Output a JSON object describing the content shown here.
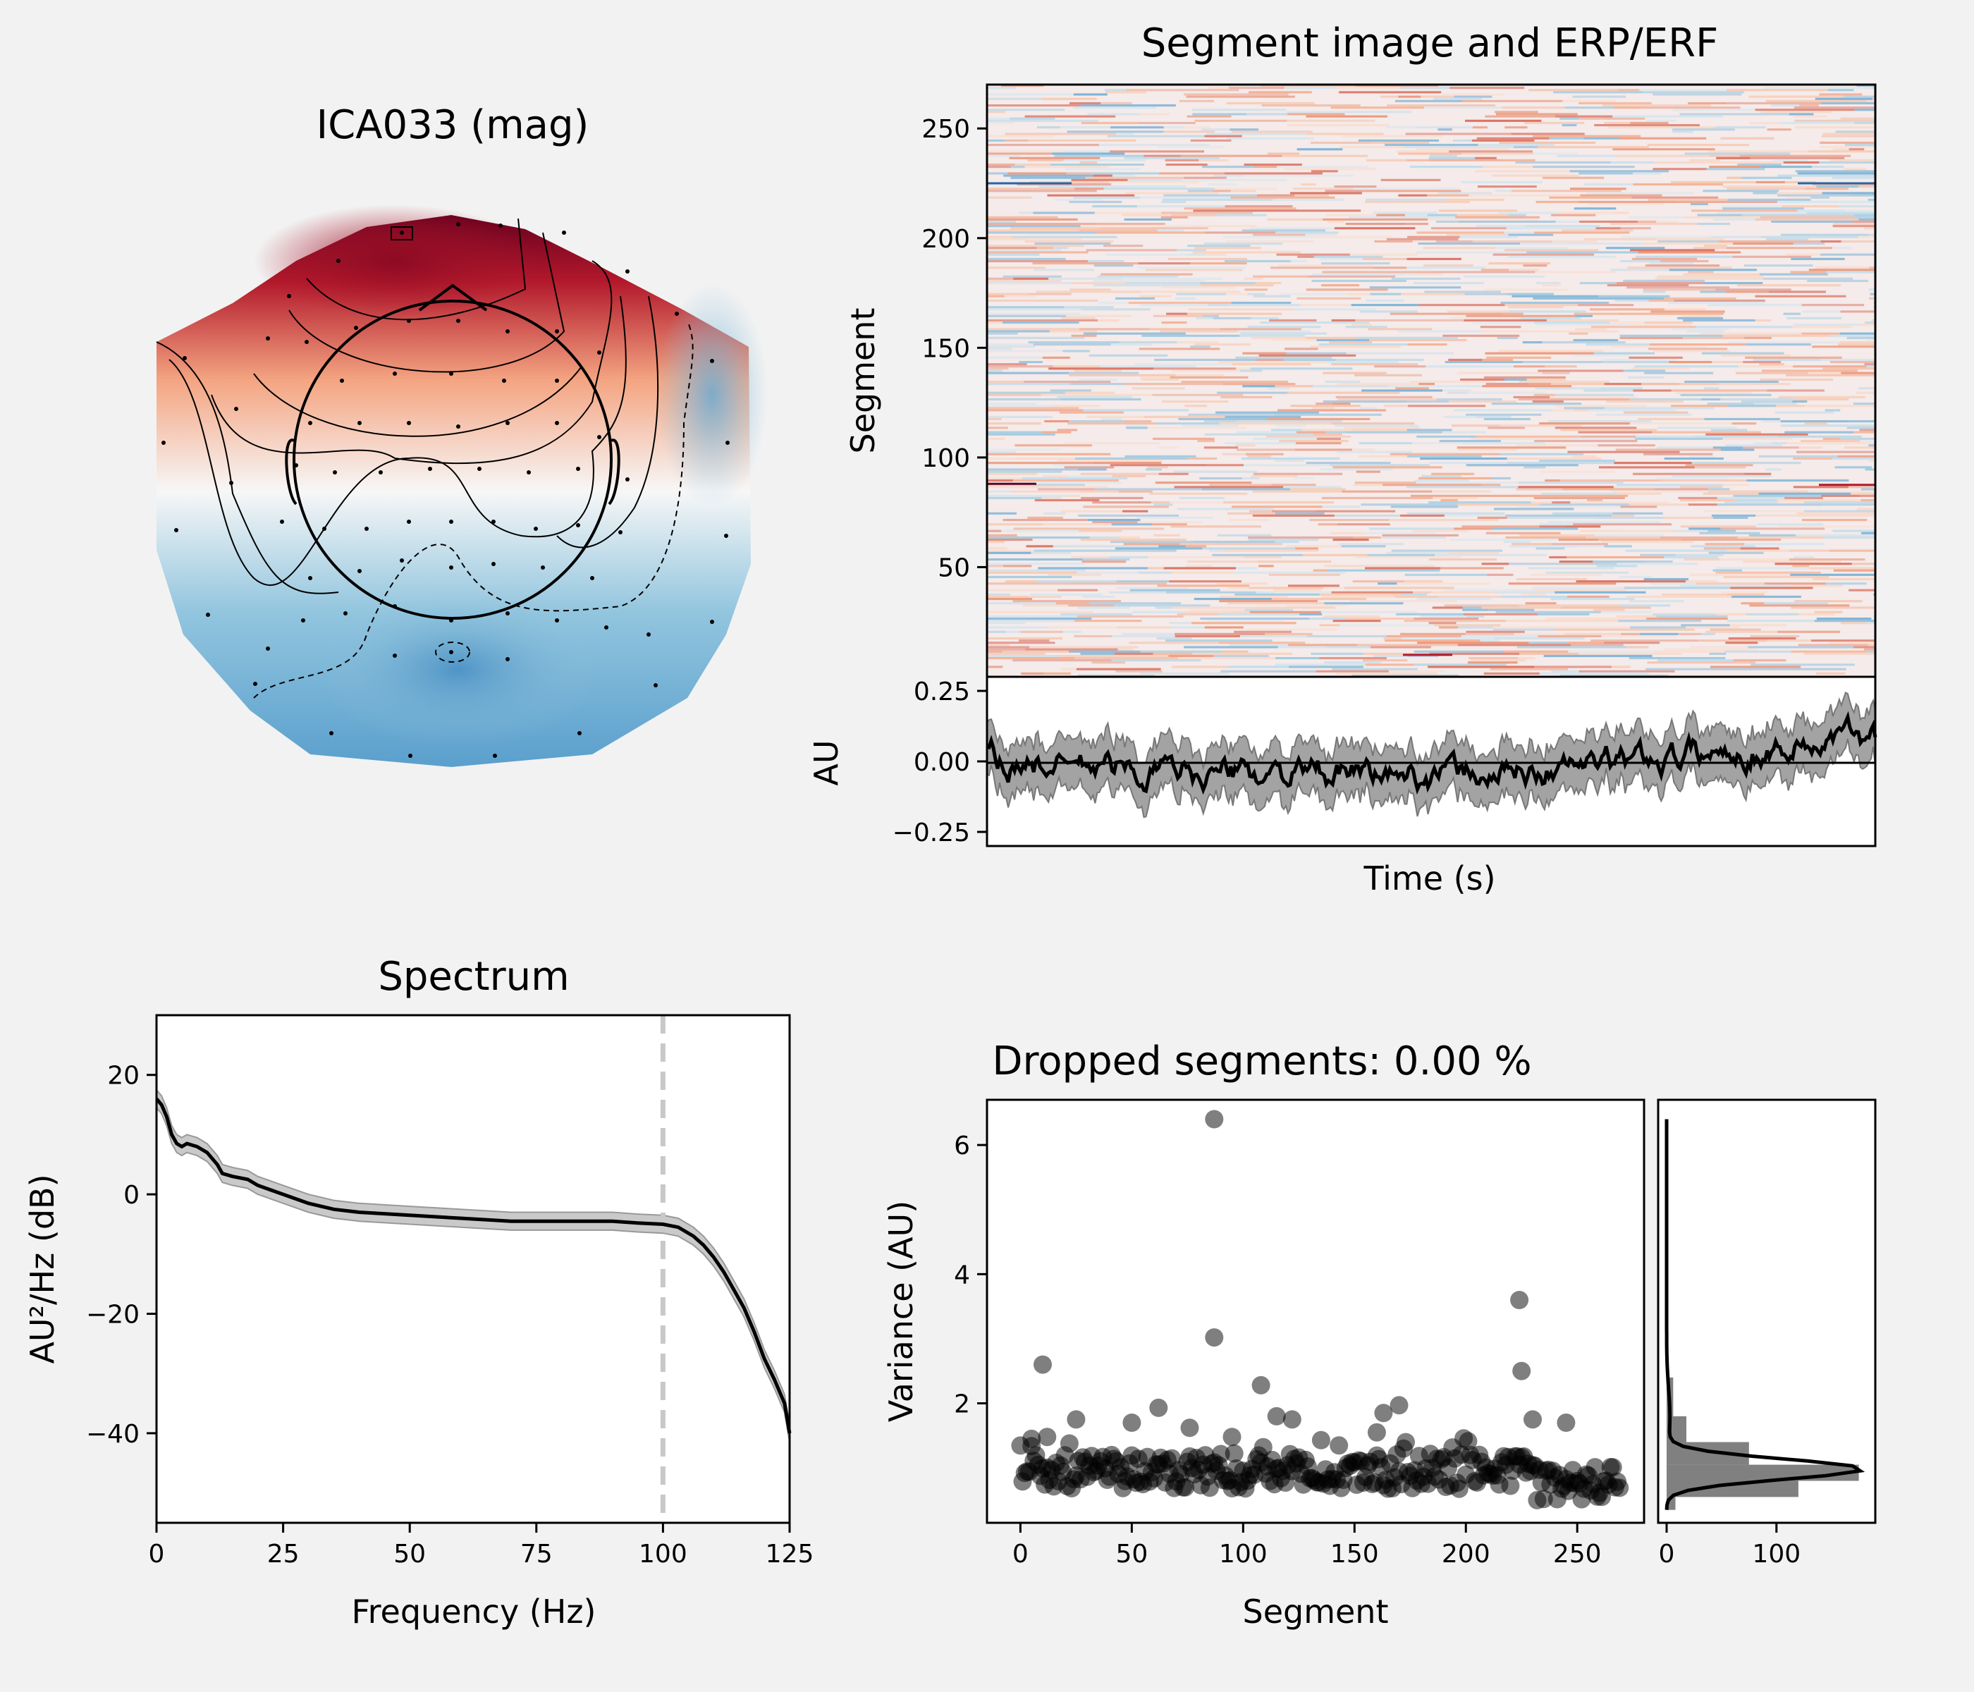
{
  "topomap": {
    "title": "ICA033 (mag)",
    "colors": {
      "positive": "#67001f",
      "positive_light": "#f4a582",
      "neutral": "#f7f7f7",
      "negative_light": "#92c5de",
      "negative": "#2166ac"
    }
  },
  "segment_image": {
    "title": "Segment image and ERP/ERF",
    "ylabel": "Segment",
    "yticks": [
      "250",
      "200",
      "150",
      "100",
      "50"
    ],
    "erp_ylabel": "AU",
    "erp_yticks": [
      "0.25",
      "0.00",
      "−0.25"
    ],
    "xlabel": "Time (s)"
  },
  "spectrum": {
    "title": "Spectrum",
    "xlabel": "Frequency (Hz)",
    "ylabel": "AU²/Hz (dB)",
    "xticks": [
      "0",
      "25",
      "50",
      "75",
      "100",
      "125"
    ],
    "yticks": [
      "20",
      "0",
      "−20",
      "−40"
    ]
  },
  "dropped": {
    "title": "Dropped segments: 0.00 %",
    "xlabel": "Segment",
    "ylabel": "Variance (AU)",
    "xticks": [
      "0",
      "50",
      "100",
      "150",
      "200",
      "250"
    ],
    "yticks": [
      "6",
      "4",
      "2"
    ],
    "hist_xticks": [
      "0",
      "100"
    ]
  },
  "chart_data": [
    {
      "type": "line",
      "title": "Spectrum",
      "xlabel": "Frequency (Hz)",
      "ylabel": "AU²/Hz (dB)",
      "xlim": [
        0,
        125
      ],
      "ylim": [
        -55,
        30
      ],
      "x": [
        0,
        1,
        2,
        3,
        4,
        5,
        6,
        8,
        10,
        12,
        13,
        15,
        18,
        20,
        25,
        30,
        35,
        40,
        50,
        60,
        70,
        75,
        80,
        90,
        95,
        100,
        103,
        106,
        108,
        110,
        112,
        114,
        116,
        118,
        120,
        122,
        124,
        125
      ],
      "y": [
        16,
        15,
        13,
        10,
        8.5,
        8,
        8.5,
        8,
        7,
        5,
        3.5,
        3,
        2.5,
        1.5,
        0,
        -1.5,
        -2.5,
        -3,
        -3.5,
        -4,
        -4.5,
        -4.5,
        -4.5,
        -4.5,
        -4.8,
        -5,
        -5.5,
        -7,
        -8.5,
        -10.5,
        -13,
        -16,
        -19,
        -23,
        -27.5,
        -31,
        -35,
        -40
      ],
      "band": 1.5,
      "vline_x": 100
    },
    {
      "type": "scatter",
      "title": "Dropped segments: 0.00 %",
      "xlabel": "Segment",
      "ylabel": "Variance (AU)",
      "xlim": [
        -15,
        280
      ],
      "ylim": [
        0.15,
        6.7
      ],
      "outliers": [
        [
          87,
          6.4
        ],
        [
          87,
          3.02
        ],
        [
          10,
          2.6
        ],
        [
          224,
          3.6
        ],
        [
          225,
          2.5
        ],
        [
          108,
          2.28
        ],
        [
          170,
          1.97
        ],
        [
          163,
          1.85
        ],
        [
          62,
          1.93
        ],
        [
          115,
          1.8
        ],
        [
          122,
          1.75
        ],
        [
          25,
          1.75
        ],
        [
          230,
          1.75
        ],
        [
          245,
          1.7
        ],
        [
          50,
          1.7
        ],
        [
          160,
          1.55
        ],
        [
          76,
          1.62
        ],
        [
          95,
          1.48
        ],
        [
          12,
          1.48
        ],
        [
          5,
          1.45
        ]
      ],
      "histogram": {
        "bins": [
          [
            0.35,
            0.55,
            8
          ],
          [
            0.55,
            0.8,
            120
          ],
          [
            0.8,
            1.05,
            175
          ],
          [
            1.05,
            1.4,
            75
          ],
          [
            1.4,
            1.8,
            18
          ],
          [
            1.8,
            2.4,
            6
          ]
        ],
        "xlim": [
          0,
          190
        ]
      }
    },
    {
      "type": "heatmap",
      "title": "Segment image and ERP/ERF",
      "ylabel": "Segment",
      "ylim": [
        0,
        270
      ],
      "erp": {
        "ylabel": "AU",
        "ylim": [
          -0.3,
          0.3
        ],
        "band": 0.09
      }
    }
  ]
}
